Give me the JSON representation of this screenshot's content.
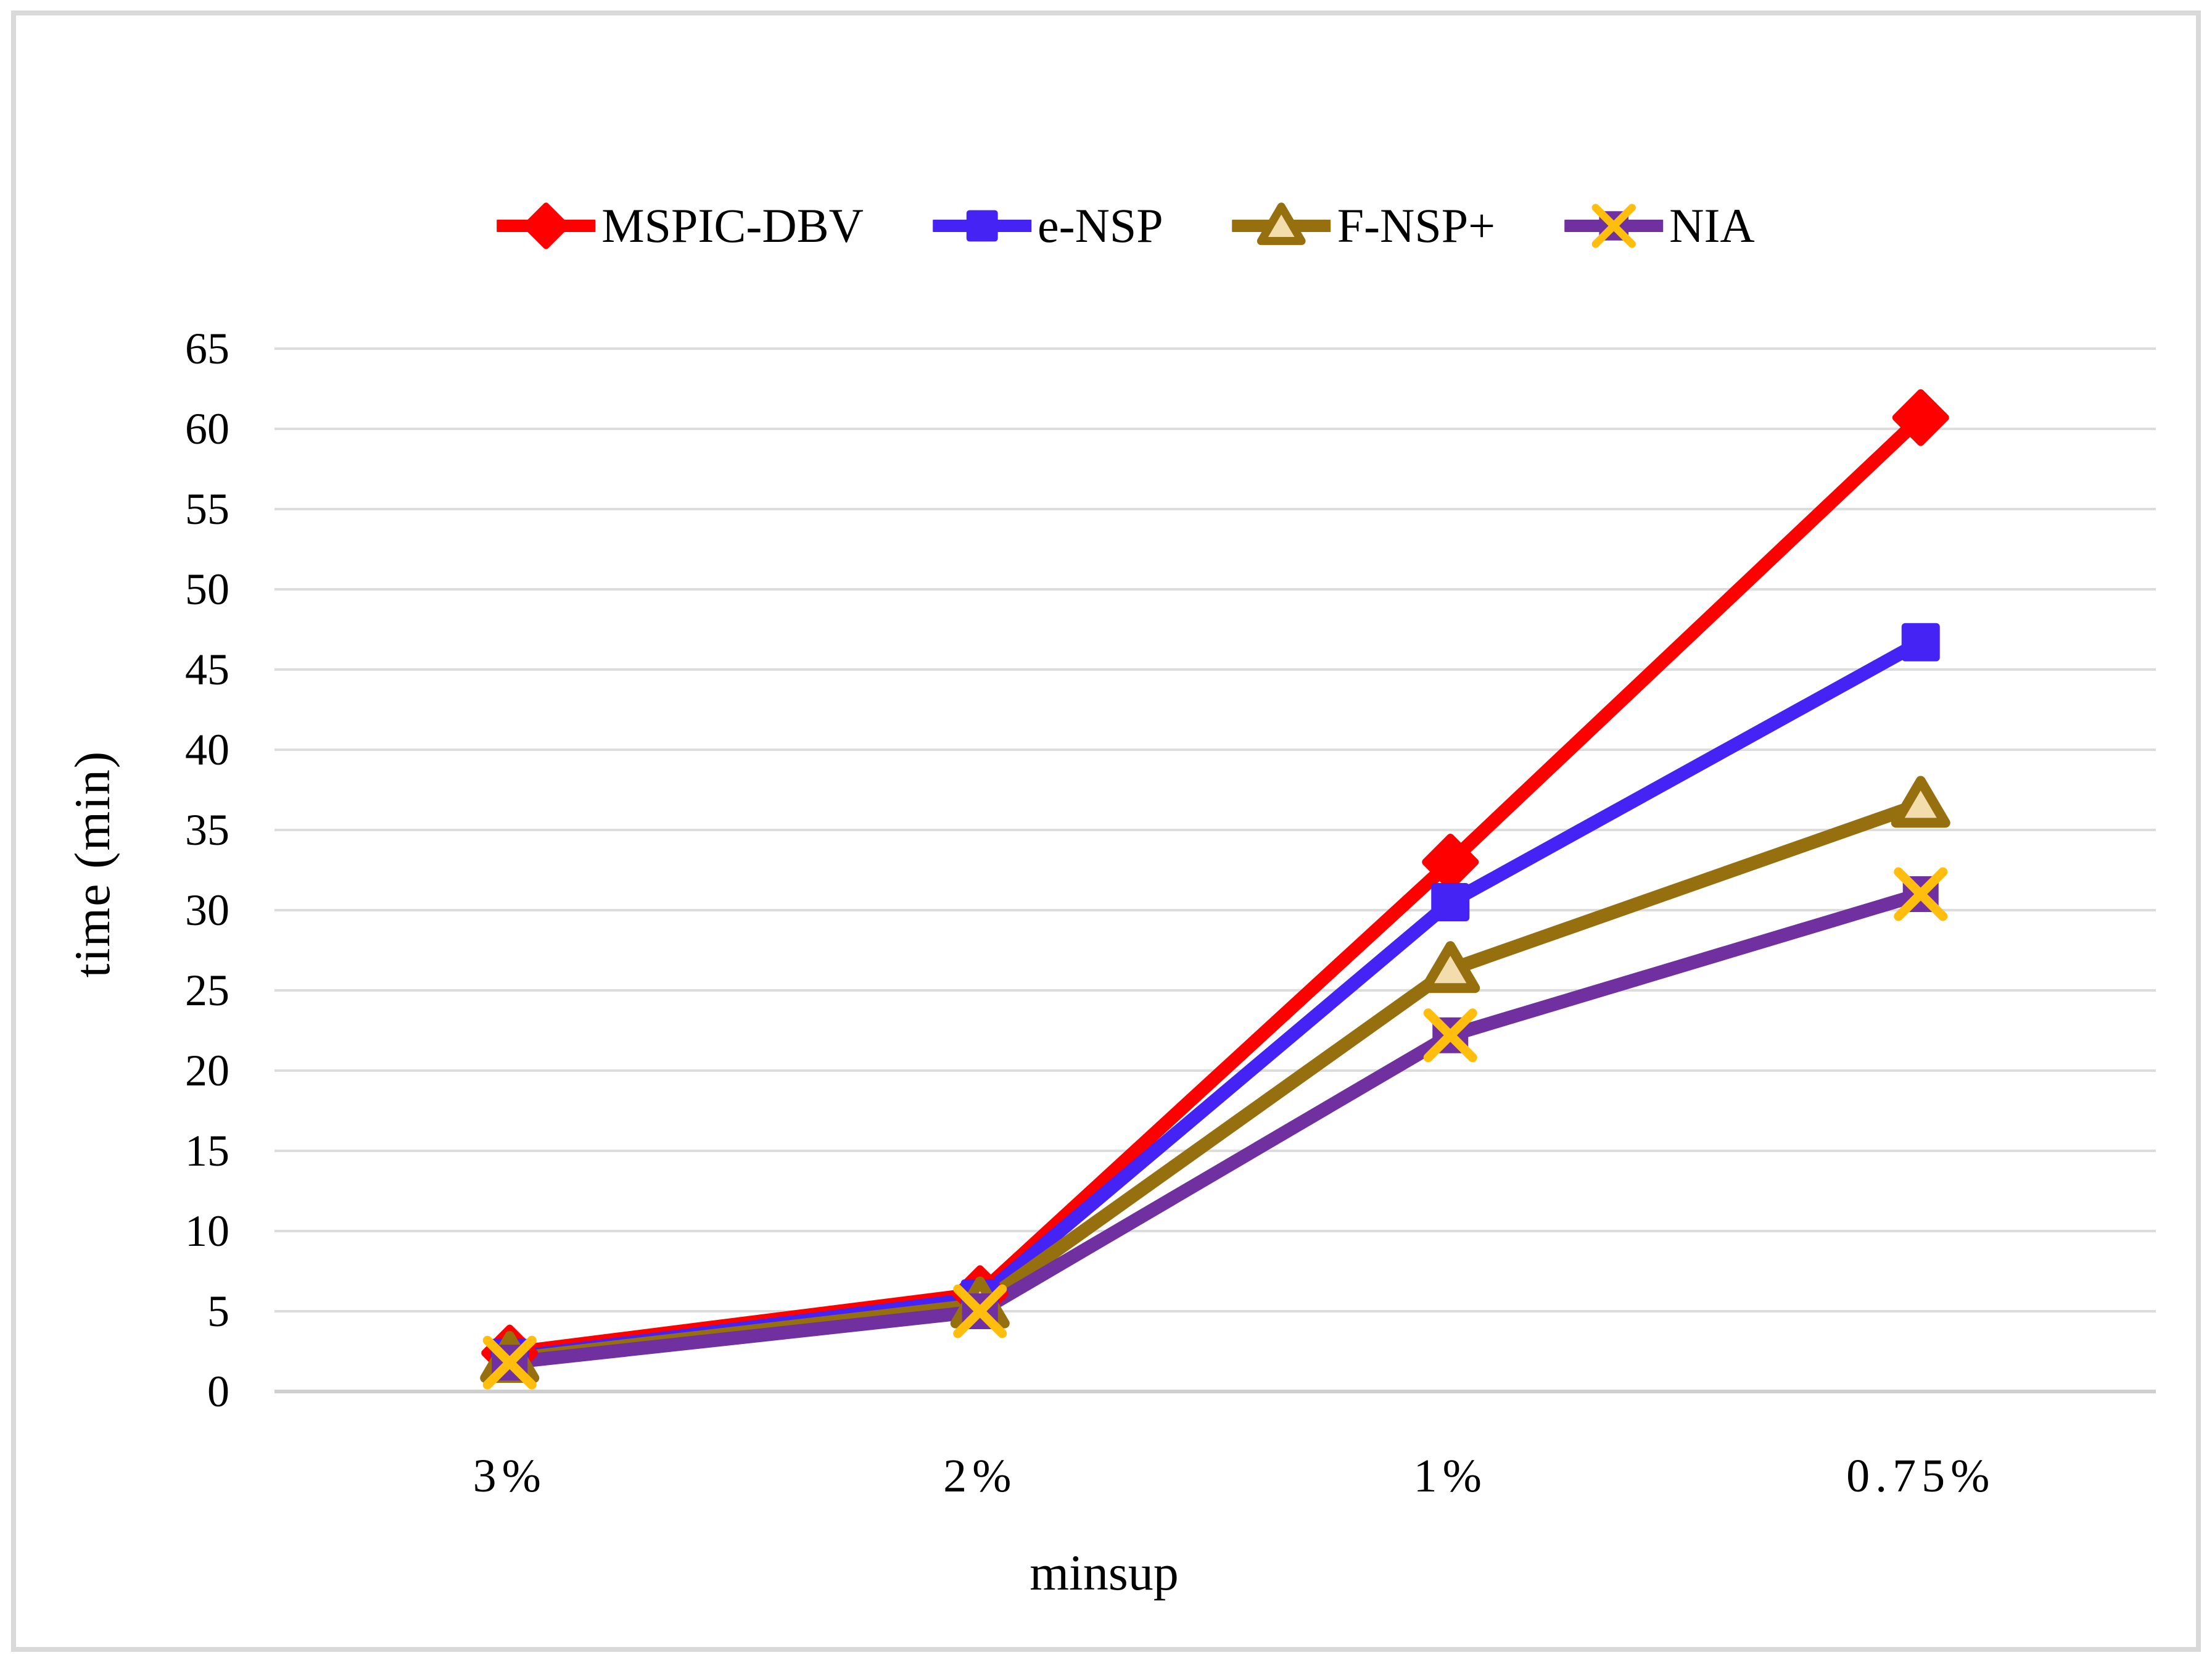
{
  "chart_data": {
    "type": "line",
    "categories": [
      "3%",
      "2%",
      "1%",
      "0.75%"
    ],
    "series": [
      {
        "name": "MSPIC-DBV",
        "marker": "diamond",
        "color": "#FF0000",
        "marker_fill": "#FF0000",
        "values": [
          2.4,
          6.1,
          33.0,
          60.7
        ]
      },
      {
        "name": "e-NSP",
        "marker": "square",
        "color": "#4523F5",
        "marker_fill": "#4523F5",
        "values": [
          2.1,
          5.8,
          30.5,
          46.7
        ]
      },
      {
        "name": "F-NSP+",
        "marker": "triangle",
        "color": "#96700E",
        "marker_fill": "#F4DDAD",
        "values": [
          2.0,
          5.4,
          26.3,
          36.6
        ]
      },
      {
        "name": "NIA",
        "marker": "x-square",
        "color": "#7030A0",
        "marker_fill": "#FFBD0D",
        "values": [
          1.8,
          5.0,
          22.2,
          31.0
        ]
      }
    ],
    "xlabel": "minsup",
    "ylabel": "time (min)",
    "ylim": [
      0,
      65
    ],
    "yticks": [
      0,
      5,
      10,
      15,
      20,
      25,
      30,
      35,
      40,
      45,
      50,
      55,
      60,
      65
    ],
    "grid": "horizontal",
    "legend_position": "top",
    "grid_color": "#DCDCDC",
    "axis_line_color": "#CFCFCF",
    "frame_color": "#D9D9D9",
    "text_color": "#000000",
    "background": "#FFFFFF"
  }
}
